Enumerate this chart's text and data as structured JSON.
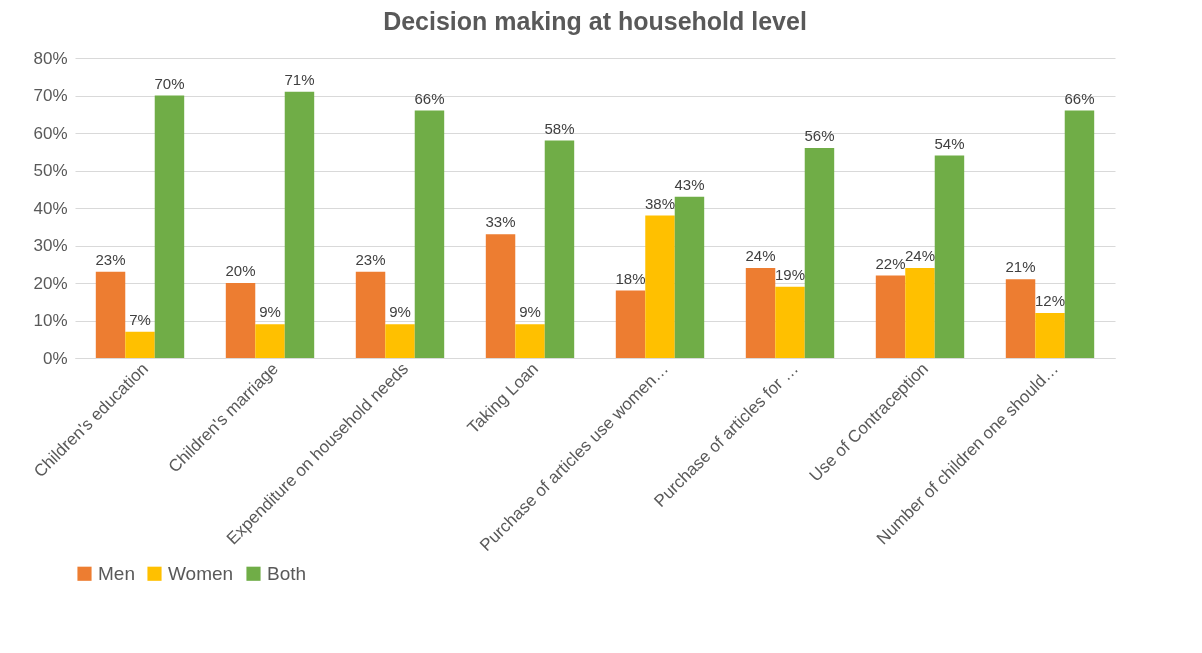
{
  "chart_data": {
    "type": "bar",
    "title": "Decision making at household level",
    "categories": [
      "Children's education",
      "Children's marriage",
      "Expenditure on household needs",
      "Taking Loan",
      "Purchase of articles use women…",
      "Purchase of articles for …",
      "Use of Contraception",
      "Number of children one should…"
    ],
    "series": [
      {
        "name": "Men",
        "color": "#ed7d31",
        "values": [
          23,
          20,
          23,
          33,
          18,
          24,
          22,
          21
        ],
        "value_labels": [
          "23%",
          "20%",
          "23%",
          "33%",
          "18%",
          "24%",
          "22%",
          "21%"
        ]
      },
      {
        "name": "Women",
        "color": "#ffc000",
        "values": [
          7,
          9,
          9,
          9,
          38,
          19,
          24,
          12
        ],
        "value_labels": [
          "7%",
          "9%",
          "9%",
          "9%",
          "38%",
          "19%",
          "24%",
          "12%"
        ]
      },
      {
        "name": "Both",
        "color": "#70ad47",
        "values": [
          70,
          71,
          66,
          58,
          43,
          56,
          54,
          66
        ],
        "value_labels": [
          "70%",
          "71%",
          "66%",
          "58%",
          "43%",
          "56%",
          "54%",
          "66%"
        ]
      }
    ],
    "ylim": [
      0,
      80
    ],
    "yticks": [
      {
        "value": 0,
        "label": "0%"
      },
      {
        "value": 10,
        "label": "10%"
      },
      {
        "value": 20,
        "label": "20%"
      },
      {
        "value": 30,
        "label": "30%"
      },
      {
        "value": 40,
        "label": "40%"
      },
      {
        "value": 50,
        "label": "50%"
      },
      {
        "value": 60,
        "label": "60%"
      },
      {
        "value": 70,
        "label": "70%"
      },
      {
        "value": 80,
        "label": "80%"
      }
    ],
    "grid": "y",
    "legend": "bottom"
  }
}
